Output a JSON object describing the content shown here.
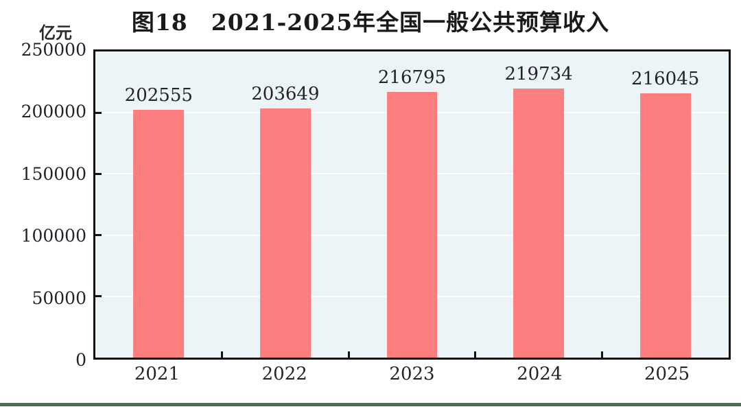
{
  "chart_data": {
    "type": "bar",
    "title": "图18　2021-2025年全国一般公共预算收入",
    "unit_label": "亿元",
    "categories": [
      "2021",
      "2022",
      "2023",
      "2024",
      "2025"
    ],
    "values": [
      202555,
      203649,
      216795,
      219734,
      216045
    ],
    "bar_value_labels": [
      "202555",
      "203649",
      "216795",
      "219734",
      "216045"
    ],
    "ylim": [
      0,
      250000
    ],
    "yticks": [
      0,
      50000,
      100000,
      150000,
      200000,
      250000
    ],
    "ytick_labels": [
      "0",
      "50000",
      "100000",
      "150000",
      "200000",
      "250000"
    ],
    "grid": "horizontal white gridlines at each y tick, drawn behind bars",
    "legend": "none",
    "colors": {
      "bar": "#fc7e7e",
      "plot_background": "#edf4f7",
      "gridline": "#ffffff",
      "axis_border": "#111111",
      "text": "#22242c",
      "bottom_rule": "#4e6e51",
      "page_background": "#ffffff"
    }
  }
}
